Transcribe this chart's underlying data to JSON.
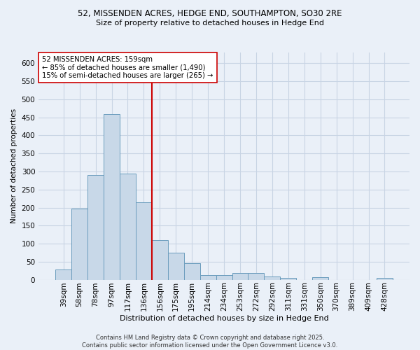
{
  "title_line1": "52, MISSENDEN ACRES, HEDGE END, SOUTHAMPTON, SO30 2RE",
  "title_line2": "Size of property relative to detached houses in Hedge End",
  "xlabel": "Distribution of detached houses by size in Hedge End",
  "ylabel": "Number of detached properties",
  "categories": [
    "39sqm",
    "58sqm",
    "78sqm",
    "97sqm",
    "117sqm",
    "136sqm",
    "156sqm",
    "175sqm",
    "195sqm",
    "214sqm",
    "234sqm",
    "253sqm",
    "272sqm",
    "292sqm",
    "311sqm",
    "331sqm",
    "350sqm",
    "370sqm",
    "389sqm",
    "409sqm",
    "428sqm"
  ],
  "values": [
    28,
    197,
    290,
    460,
    295,
    215,
    110,
    75,
    45,
    12,
    12,
    18,
    18,
    9,
    5,
    0,
    6,
    0,
    0,
    0,
    5
  ],
  "bar_color": "#c8d8e8",
  "bar_edge_color": "#6a9cbd",
  "grid_color": "#c8d4e4",
  "vline_color": "#cc0000",
  "annotation_text": "52 MISSENDEN ACRES: 159sqm\n← 85% of detached houses are smaller (1,490)\n15% of semi-detached houses are larger (265) →",
  "annotation_box_color": "#ffffff",
  "annotation_box_edge": "#cc0000",
  "ylim": [
    0,
    630
  ],
  "yticks": [
    0,
    50,
    100,
    150,
    200,
    250,
    300,
    350,
    400,
    450,
    500,
    550,
    600
  ],
  "footer_line1": "Contains HM Land Registry data © Crown copyright and database right 2025.",
  "footer_line2": "Contains public sector information licensed under the Open Government Licence v3.0.",
  "bg_color": "#eaf0f8",
  "plot_bg_color": "#eaf0f8"
}
